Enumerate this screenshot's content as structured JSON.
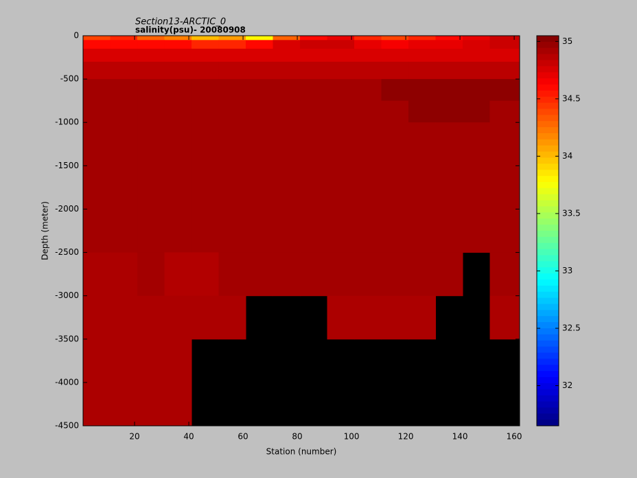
{
  "chart_data": {
    "type": "heatmap",
    "title": "Section13-ARCTIC_0",
    "subtitle": "salinity(psu)- 20080908",
    "x_label": "Station (number)",
    "y_label": "Depth (meter)",
    "x_edges": [
      1,
      11,
      21,
      31,
      41,
      51,
      61,
      71,
      81,
      91,
      101,
      111,
      121,
      131,
      141,
      151,
      162
    ],
    "y_edges": [
      0,
      -50,
      -150,
      -300,
      -500,
      -750,
      -1000,
      -2500,
      -3000,
      -3500,
      -4000,
      -4500
    ],
    "values": [
      [
        34.4,
        34.5,
        34.3,
        34.2,
        34.0,
        34.1,
        33.8,
        34.3,
        34.6,
        34.7,
        34.5,
        34.4,
        34.5,
        34.6,
        34.7,
        34.8
      ],
      [
        34.6,
        34.6,
        34.6,
        34.6,
        34.5,
        34.5,
        34.6,
        34.75,
        34.8,
        34.8,
        34.7,
        34.65,
        34.7,
        34.7,
        34.75,
        34.8
      ],
      [
        34.75,
        34.75,
        34.75,
        34.75,
        34.75,
        34.75,
        34.75,
        34.75,
        34.75,
        34.75,
        34.75,
        34.75,
        34.75,
        34.75,
        34.75,
        34.75
      ],
      [
        34.85,
        34.85,
        34.85,
        34.85,
        34.85,
        34.85,
        34.85,
        34.85,
        34.85,
        34.85,
        34.85,
        34.85,
        34.85,
        34.85,
        34.85,
        34.85
      ],
      [
        34.93,
        34.93,
        34.93,
        34.93,
        34.93,
        34.93,
        34.93,
        34.93,
        34.93,
        34.93,
        34.93,
        35.0,
        35.0,
        35.0,
        35.0,
        35.0
      ],
      [
        34.93,
        34.93,
        34.93,
        34.93,
        34.93,
        34.93,
        34.93,
        34.93,
        34.93,
        34.93,
        34.93,
        34.93,
        35.0,
        35.0,
        35.0,
        34.93
      ],
      [
        34.93,
        34.93,
        34.93,
        34.93,
        34.93,
        34.93,
        34.93,
        34.93,
        34.93,
        34.93,
        34.93,
        34.93,
        34.93,
        34.93,
        34.93,
        34.93
      ],
      [
        34.9,
        34.9,
        34.93,
        34.88,
        34.88,
        34.93,
        34.93,
        34.93,
        34.93,
        34.93,
        34.93,
        34.93,
        34.93,
        34.93,
        null,
        34.93
      ],
      [
        34.9,
        34.9,
        34.9,
        34.9,
        34.9,
        34.9,
        null,
        null,
        null,
        34.9,
        34.9,
        34.9,
        34.9,
        null,
        null,
        34.9
      ],
      [
        34.9,
        34.9,
        34.9,
        34.9,
        null,
        null,
        null,
        null,
        null,
        null,
        null,
        null,
        null,
        null,
        null,
        null
      ],
      [
        34.9,
        34.9,
        34.9,
        34.9,
        null,
        null,
        null,
        null,
        null,
        null,
        null,
        null,
        null,
        null,
        null,
        null
      ]
    ],
    "xlim": [
      1,
      162
    ],
    "xticks": [
      20,
      40,
      60,
      80,
      100,
      120,
      140,
      160
    ],
    "ylim": [
      -4500,
      0
    ],
    "yticks": [
      0,
      -500,
      -1000,
      -1500,
      -2000,
      -2500,
      -3000,
      -3500,
      -4000,
      -4500
    ],
    "colormap": "jet",
    "clim": [
      31.65,
      35.05
    ],
    "cticks": [
      32,
      32.5,
      33,
      33.5,
      34,
      34.5,
      35
    ],
    "nan_color": "#000000"
  }
}
